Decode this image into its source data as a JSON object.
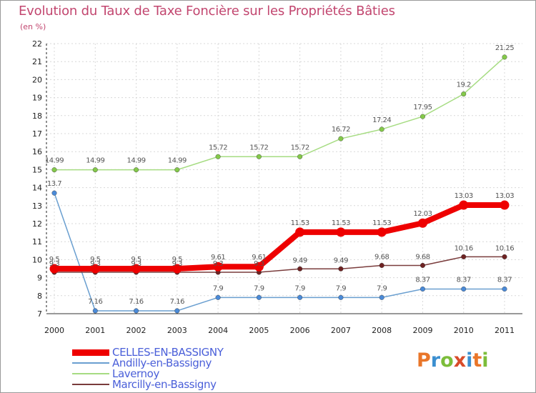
{
  "header": {
    "title": "Evolution du Taux de Taxe Foncière sur les Propriétés Bâties",
    "unit": "(en %)"
  },
  "brand": {
    "text": "Proxiti",
    "colors": [
      "#e9762a",
      "#3b8fd0",
      "#7cbd3a",
      "#d84c2a",
      "#3b8fd0",
      "#e9762a",
      "#7cbd3a"
    ]
  },
  "chart_data": {
    "type": "line",
    "x": [
      "2000",
      "2001",
      "2002",
      "2003",
      "2004",
      "2005",
      "2006",
      "2007",
      "2008",
      "2009",
      "2010",
      "2011"
    ],
    "ylim": [
      7,
      22
    ],
    "yticks": [
      7,
      8,
      9,
      10,
      11,
      12,
      13,
      14,
      15,
      16,
      17,
      18,
      19,
      20,
      21,
      22
    ],
    "legend_position": "bottom-left",
    "series": [
      {
        "name": "CELLES-EN-BASSIGNY",
        "values": [
          9.5,
          9.5,
          9.5,
          9.5,
          9.61,
          9.61,
          11.53,
          11.53,
          11.53,
          12.03,
          13.03,
          13.03
        ],
        "labels": [
          "9.5",
          "9.5",
          "9.5",
          "9.5",
          "9.61",
          "9.61",
          "11.53",
          "11.53",
          "11.53",
          "12.03",
          "13.03",
          "13.03"
        ],
        "color": "#ee0000",
        "emphasis": true
      },
      {
        "name": "Andilly-en-Bassigny",
        "values": [
          13.7,
          7.16,
          7.16,
          7.16,
          7.9,
          7.9,
          7.9,
          7.9,
          7.9,
          8.37,
          8.37,
          8.37
        ],
        "labels": [
          "13.7",
          "7.16",
          "7.16",
          "7.16",
          "7.9",
          "7.9",
          "7.9",
          "7.9",
          "7.9",
          "8.37",
          "8.37",
          "8.37"
        ],
        "color": "#6a9fd0",
        "marker": "#4a8ad8"
      },
      {
        "name": "Lavernoy",
        "values": [
          14.99,
          14.99,
          14.99,
          14.99,
          15.72,
          15.72,
          15.72,
          16.72,
          17.24,
          17.95,
          19.2,
          21.25
        ],
        "labels": [
          "14.99",
          "14.99",
          "14.99",
          "14.99",
          "15.72",
          "15.72",
          "15.72",
          "16.72",
          "17.24",
          "17.95",
          "19.2",
          "21.25"
        ],
        "color": "#a6dc82",
        "marker": "#84c94a"
      },
      {
        "name": "Marcilly-en-Bassigny",
        "values": [
          9.3,
          9.3,
          9.3,
          9.3,
          9.3,
          9.3,
          9.49,
          9.49,
          9.68,
          9.68,
          10.16,
          10.16
        ],
        "labels": [
          "9.3",
          "9.3",
          "9.3",
          "9.3",
          "9.3",
          "9.3",
          "9.49",
          "9.49",
          "9.68",
          "9.68",
          "10.16",
          "10.16"
        ],
        "color": "#7a3c3c",
        "marker": "#6e2222"
      }
    ]
  }
}
